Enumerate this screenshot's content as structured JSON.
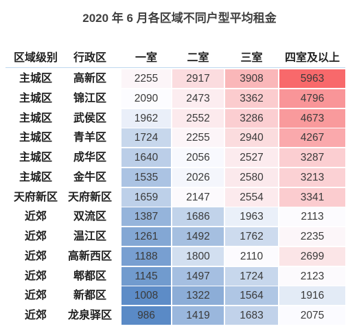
{
  "chart_data": {
    "type": "heatmap",
    "title": "2020 年 6 月各区域不同户型平均租金",
    "row_headers": [
      "区域级别",
      "行政区"
    ],
    "categories": [
      "一室",
      "二室",
      "三室",
      "四室及以上"
    ],
    "rows": [
      {
        "level": "主城区",
        "district": "高新区",
        "values": [
          2255,
          2917,
          3908,
          5963
        ]
      },
      {
        "level": "主城区",
        "district": "锦江区",
        "values": [
          2090,
          2473,
          3362,
          4796
        ]
      },
      {
        "level": "主城区",
        "district": "武侯区",
        "values": [
          1962,
          2552,
          3286,
          4673
        ]
      },
      {
        "level": "主城区",
        "district": "青羊区",
        "values": [
          1724,
          2255,
          2940,
          4267
        ]
      },
      {
        "level": "主城区",
        "district": "成华区",
        "values": [
          1640,
          2056,
          2527,
          3287
        ]
      },
      {
        "level": "主城区",
        "district": "金牛区",
        "values": [
          1535,
          2026,
          2580,
          3213
        ]
      },
      {
        "level": "天府新区",
        "district": "天府新区",
        "values": [
          1659,
          2147,
          2554,
          3341
        ]
      },
      {
        "level": "近郊",
        "district": "双流区",
        "values": [
          1387,
          1686,
          1963,
          2113
        ]
      },
      {
        "level": "近郊",
        "district": "温江区",
        "values": [
          1261,
          1492,
          1762,
          2235
        ]
      },
      {
        "level": "近郊",
        "district": "高新西区",
        "values": [
          1188,
          1800,
          2110,
          2699
        ]
      },
      {
        "level": "近郊",
        "district": "郫都区",
        "values": [
          1145,
          1497,
          1724,
          2123
        ]
      },
      {
        "level": "近郊",
        "district": "新都区",
        "values": [
          1008,
          1322,
          1564,
          1916
        ]
      },
      {
        "level": "近郊",
        "district": "龙泉驿区",
        "values": [
          986,
          1419,
          1683,
          2075
        ]
      }
    ],
    "color_scale": {
      "low": "#5A8AC6",
      "mid": "#FCFCFF",
      "high": "#F8696B"
    }
  }
}
